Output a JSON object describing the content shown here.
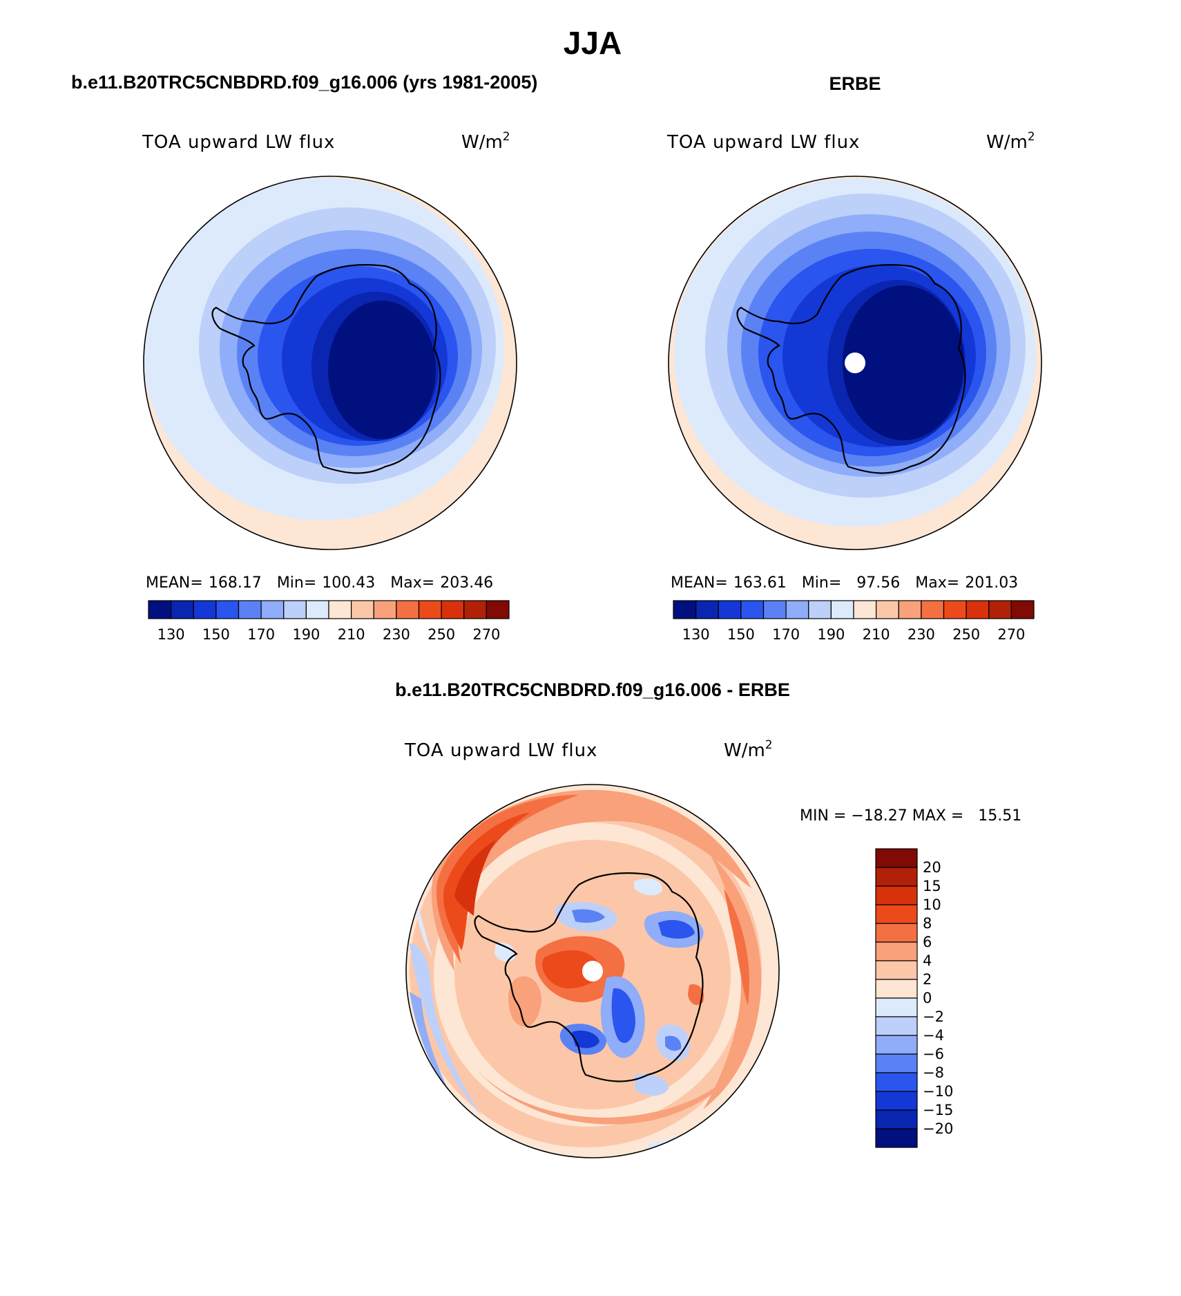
{
  "page": {
    "title": "JJA"
  },
  "panel_model": {
    "header": "b.e11.B20TRC5CNBDRD.f09_g16.006 (yrs 1981-2005)",
    "variable": "TOA upward LW flux",
    "units_base": "W/m",
    "units_exp": "2",
    "stats": {
      "mean_label": "MEAN=",
      "mean": "168.17",
      "min_label": "Min=",
      "min": "100.43",
      "max_label": "Max=",
      "max": "203.46"
    }
  },
  "panel_obs": {
    "header": "ERBE",
    "variable": "TOA upward LW flux",
    "units_base": "W/m",
    "units_exp": "2",
    "stats": {
      "mean_label": "MEAN=",
      "mean": "163.61",
      "min_label": "Min=",
      "min": "97.56",
      "max_label": "Max=",
      "max": "201.03"
    }
  },
  "panel_diff": {
    "header": "b.e11.B20TRC5CNBDRD.f09_g16.006 - ERBE",
    "variable": "TOA upward LW flux",
    "units_base": "W/m",
    "units_exp": "2",
    "minmax": "MIN = −18.27 MAX =   15.51"
  },
  "colorbar_abs": {
    "colors": [
      "#00107f",
      "#0a25b0",
      "#1338d6",
      "#2a55ee",
      "#5b82f5",
      "#8fadf8",
      "#bdd0fa",
      "#ddeafc",
      "#fde6d4",
      "#fcc7a8",
      "#f8a17b",
      "#f47042",
      "#ec4a1a",
      "#d7320c",
      "#b02108",
      "#800a04"
    ],
    "tick_labels": [
      "130",
      "150",
      "170",
      "190",
      "210",
      "230",
      "250",
      "270"
    ]
  },
  "colorbar_diff": {
    "colors_top_to_bottom": [
      "#800a04",
      "#b02108",
      "#d7320c",
      "#ec4a1a",
      "#f47042",
      "#f8a17b",
      "#fcc7a8",
      "#fde6d4",
      "#ddeafc",
      "#bdd0fa",
      "#8fadf8",
      "#5b82f5",
      "#2a55ee",
      "#1338d6",
      "#0a25b0",
      "#00107f"
    ],
    "tick_labels": [
      "20",
      "15",
      "10",
      "8",
      "6",
      "4",
      "2",
      "0",
      "−2",
      "−4",
      "−6",
      "−8",
      "−10",
      "−15",
      "−20"
    ]
  },
  "map_colors": {
    "abs_rings": [
      "#00107f",
      "#0a25b0",
      "#1338d6",
      "#2a55ee",
      "#5b82f5",
      "#8fadf8",
      "#bdd0fa",
      "#ddeafc",
      "#fde6d4"
    ],
    "diff_red": [
      "#fde6d4",
      "#fcc7a8",
      "#f8a17b",
      "#f47042",
      "#ec4a1a",
      "#d7320c"
    ],
    "diff_blue": [
      "#ddeafc",
      "#bdd0fa",
      "#8fadf8",
      "#5b82f5",
      "#2a55ee",
      "#1338d6"
    ]
  }
}
